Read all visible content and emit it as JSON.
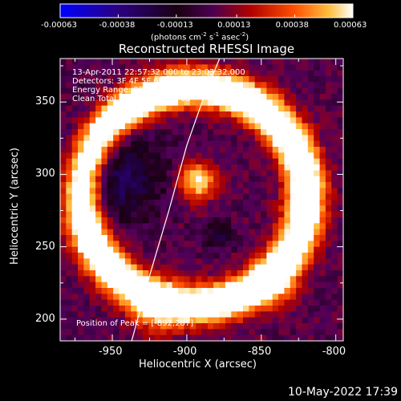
{
  "colorbar": {
    "ticks": [
      "-0.00063",
      "-0.00038",
      "-0.00013",
      "0.00013",
      "0.00038",
      "0.00063"
    ],
    "tick_values": [
      -0.00063,
      -0.00038,
      -0.00013,
      0.00013,
      0.00038,
      0.00063
    ],
    "units": "(photons cm",
    "units_exp1": "-2",
    "units_mid": " s",
    "units_exp2": "-1",
    "units_mid2": " asec",
    "units_exp3": "-2",
    "units_end": ")",
    "colors": [
      "#0000ff",
      "#200060",
      "#000000",
      "#8000a0",
      "#ff0000",
      "#ff8000",
      "#ffff80",
      "#ffffff"
    ]
  },
  "chart_data": {
    "type": "heatmap",
    "title": "Reconstructed RHESSI Image",
    "xlabel": "Heliocentric X (arcsec)",
    "ylabel": "Heliocentric Y (arcsec)",
    "xlim": [
      -985,
      -795
    ],
    "ylim": [
      185,
      380
    ],
    "x_ticks": [
      -950,
      -900,
      -850,
      -800
    ],
    "y_ticks": [
      200,
      250,
      300,
      350
    ],
    "x_tick_labels": [
      "-950",
      "-900",
      "-850",
      "-800"
    ],
    "y_tick_labels": [
      "200",
      "250",
      "300",
      "350"
    ],
    "info_lines": [
      "13-Apr-2011 22:57:32.000 to 23:03:32.000",
      "Detectors: 3F 4F 5F 6F 7F 8F, Att 0",
      "Energy Range: 25.0 - 50.0 keV",
      "Clean     Total counts: 9.66E+03"
    ],
    "peak_label": "Position of Peak = [-892,287]",
    "peak": [
      -892,
      287
    ],
    "limb_curve": [
      [
        -937,
        185
      ],
      [
        -925,
        230
      ],
      [
        -912,
        275
      ],
      [
        -900,
        320
      ],
      [
        -888,
        355
      ],
      [
        -878,
        380
      ]
    ],
    "sources": [
      {
        "x": -893,
        "y": 295,
        "sigma": 9,
        "amp": 1.6
      },
      {
        "x": -878,
        "y": 258,
        "sigma": 7,
        "amp": -0.6
      },
      {
        "x": -920,
        "y": 205,
        "sigma": 12,
        "amp": 0.7
      },
      {
        "x": -840,
        "y": 220,
        "sigma": 10,
        "amp": 0.6
      }
    ],
    "ring": {
      "cx": -895,
      "cy": 285,
      "r": 75,
      "width": 13,
      "amp": 0.75
    },
    "hole": {
      "x": -948,
      "y": 300,
      "sigma": 22,
      "amp": -0.75
    }
  },
  "footer": {
    "timestamp": "10-May-2022 17:39"
  }
}
